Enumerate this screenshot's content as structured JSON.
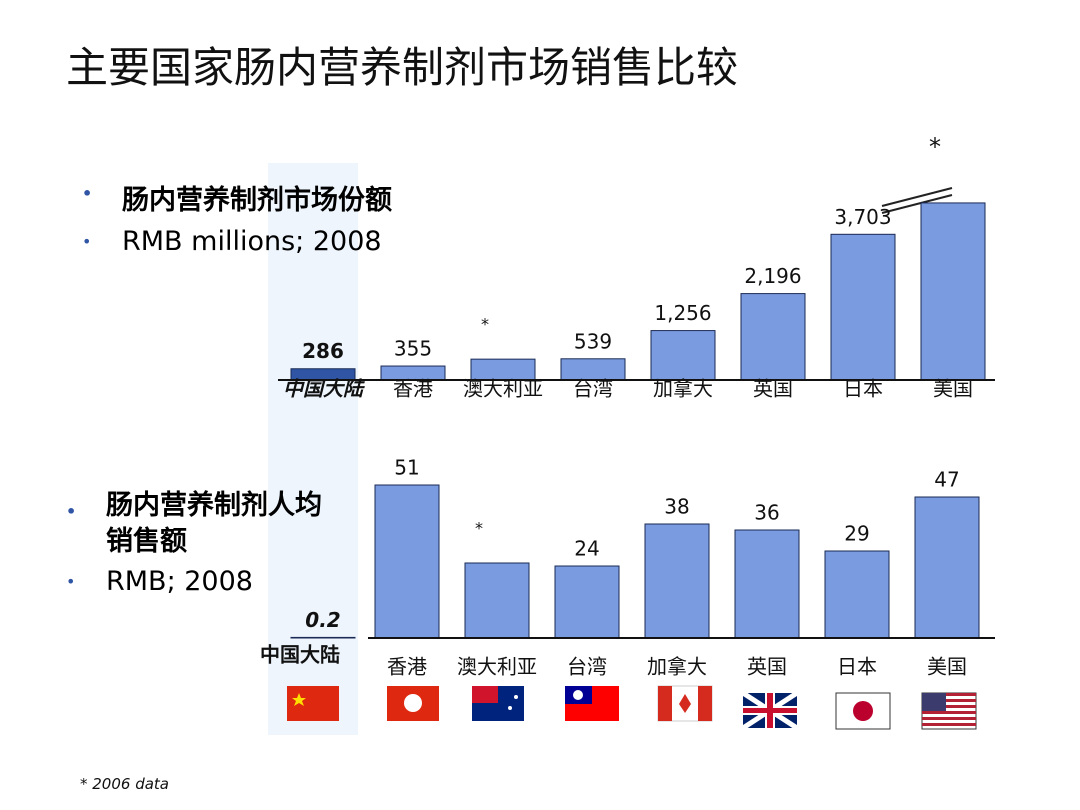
{
  "title": "主要国家肠内营养制剂市场销售比较",
  "footnote": "*  2006 data",
  "chart_data": [
    {
      "type": "bar",
      "bullets": [
        "肠内营养制剂市场份额",
        "RMB millions; 2008"
      ],
      "categories": [
        "中国大陆",
        "香港",
        "澳大利亚",
        "台湾",
        "加拿大",
        "英国",
        "日本",
        "美国"
      ],
      "values": [
        286,
        355,
        530,
        539,
        1256,
        2196,
        3703,
        4500
      ],
      "value_labels": [
        "286",
        "355",
        null,
        "539",
        "1,256",
        "2,196",
        "3,703",
        null
      ],
      "markers": [
        null,
        null,
        "*",
        null,
        null,
        null,
        null,
        "*"
      ],
      "colors": [
        "#2f55a4",
        "#7b9be0",
        "#7b9be0",
        "#7b9be0",
        "#7b9be0",
        "#7b9be0",
        "#7b9be0",
        "#7b9be0"
      ],
      "ylim": [
        0,
        4600
      ]
    },
    {
      "type": "bar",
      "bullets": [
        "肠内营养制剂人均销售额",
        "RMB; 2008"
      ],
      "categories": [
        "中国大陆",
        "香港",
        "澳大利亚",
        "台湾",
        "加拿大",
        "英国",
        "日本",
        "美国"
      ],
      "values": [
        0.2,
        51,
        25,
        24,
        38,
        36,
        29,
        47
      ],
      "value_labels": [
        "0.2",
        "51",
        null,
        "24",
        "38",
        "36",
        "29",
        "47"
      ],
      "markers": [
        null,
        null,
        "*",
        null,
        null,
        null,
        null,
        null
      ],
      "colors": [
        "#2f55a4",
        "#7b9be0",
        "#7b9be0",
        "#7b9be0",
        "#7b9be0",
        "#7b9be0",
        "#7b9be0",
        "#7b9be0"
      ],
      "ylim": [
        0,
        55
      ]
    }
  ]
}
